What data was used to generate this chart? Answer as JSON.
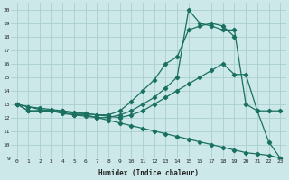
{
  "xlabel": "Humidex (Indice chaleur)",
  "bg_color": "#cce8e8",
  "grid_color": "#aacfcf",
  "line_color": "#1a7060",
  "xlim": [
    -0.5,
    23.5
  ],
  "ylim": [
    9,
    20.5
  ],
  "xticks": [
    0,
    1,
    2,
    3,
    4,
    5,
    6,
    7,
    8,
    9,
    10,
    11,
    12,
    13,
    14,
    15,
    16,
    17,
    18,
    19,
    20,
    21,
    22,
    23
  ],
  "yticks": [
    9,
    10,
    11,
    12,
    13,
    14,
    15,
    16,
    17,
    18,
    19,
    20
  ],
  "line1_x": [
    0,
    1,
    2,
    3,
    4,
    5,
    6,
    7,
    8,
    9,
    10,
    11,
    12,
    13,
    14,
    15,
    16,
    17,
    18,
    19
  ],
  "line1_y": [
    13,
    12.5,
    12.5,
    12.5,
    12.5,
    12.3,
    12.3,
    12.2,
    12.2,
    12.5,
    13.2,
    14.0,
    14.8,
    16.0,
    16.5,
    18.5,
    18.8,
    19.0,
    18.8,
    18.0
  ],
  "line2_x": [
    0,
    1,
    2,
    3,
    4,
    5,
    6,
    7,
    8,
    9,
    10,
    11,
    12,
    13,
    14,
    15,
    16,
    17,
    18,
    19,
    20,
    21,
    22,
    23
  ],
  "line2_y": [
    13,
    12.5,
    12.5,
    12.5,
    12.3,
    12.2,
    12.2,
    12.0,
    12.0,
    12.2,
    12.5,
    13.0,
    13.5,
    14.2,
    15.0,
    20.0,
    19.0,
    18.8,
    18.5,
    18.5,
    13.0,
    12.5,
    12.5,
    12.5
  ],
  "line3_x": [
    0,
    1,
    2,
    3,
    4,
    5,
    6,
    7,
    8,
    9,
    10,
    11,
    12,
    13,
    14,
    15,
    16,
    17,
    18,
    19,
    20,
    21,
    22,
    23
  ],
  "line3_y": [
    13,
    12.8,
    12.7,
    12.6,
    12.5,
    12.4,
    12.3,
    12.2,
    12.1,
    12.0,
    12.2,
    12.5,
    13.0,
    13.5,
    14.0,
    14.5,
    15.0,
    15.5,
    16.0,
    15.2,
    15.2,
    12.5,
    10.2,
    9.0
  ],
  "line4_x": [
    0,
    1,
    2,
    3,
    4,
    5,
    6,
    7,
    8,
    9,
    10,
    11,
    12,
    13,
    14,
    15,
    16,
    17,
    18,
    19,
    20,
    21,
    22,
    23
  ],
  "line4_y": [
    13,
    12.8,
    12.6,
    12.5,
    12.4,
    12.2,
    12.1,
    12.0,
    11.8,
    11.6,
    11.4,
    11.2,
    11.0,
    10.8,
    10.6,
    10.4,
    10.2,
    10.0,
    9.8,
    9.6,
    9.4,
    9.3,
    9.2,
    9.0
  ]
}
